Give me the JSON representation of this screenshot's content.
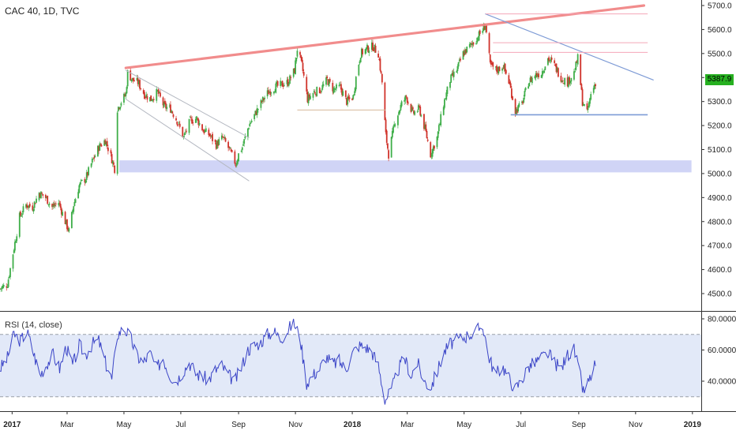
{
  "header": {
    "title": "CAC 40, 1D, TVC"
  },
  "rsi": {
    "title": "RSI (14, close)"
  },
  "last_price_label": "5387.9",
  "colors": {
    "bull": "#3fae49",
    "bear": "#d0332b",
    "trend_main": "#f08080",
    "trend_blue": "#7e9bd6",
    "zone": "#c8ccf5",
    "rsi_line": "#3b45c7",
    "rsi_band": "#dfe7f7",
    "price_tag": "#26b020",
    "horizontal_pink": "#f4a6b8",
    "horizontal_tan": "#d6b89a"
  },
  "chart_data": [
    {
      "type": "candlestick",
      "title": "CAC 40, 1D, TVC",
      "x_tick_labels": [
        "2017",
        "Mar",
        "May",
        "Jul",
        "Sep",
        "Nov",
        "2018",
        "Mar",
        "May",
        "Jul",
        "Sep",
        "Nov",
        "2019"
      ],
      "y_tick_labels": [
        "4500.0",
        "4600.0",
        "4700.0",
        "4800.0",
        "4900.0",
        "5000.0",
        "5100.0",
        "5200.0",
        "5300.0",
        "5400.0",
        "5500.0",
        "5600.0",
        "5700.0"
      ],
      "ylim": [
        4470,
        5740
      ],
      "last_price": 5387.9,
      "close_path": [
        [
          "2016-12-19",
          4520
        ],
        [
          "2016-12-27",
          4540
        ],
        [
          "2017-01-03",
          4690
        ],
        [
          "2017-01-09",
          4820
        ],
        [
          "2017-01-16",
          4870
        ],
        [
          "2017-01-23",
          4860
        ],
        [
          "2017-01-30",
          4920
        ],
        [
          "2017-02-06",
          4900
        ],
        [
          "2017-02-13",
          4860
        ],
        [
          "2017-02-20",
          4880
        ],
        [
          "2017-02-27",
          4800
        ],
        [
          "2017-03-03",
          4760
        ],
        [
          "2017-03-08",
          4870
        ],
        [
          "2017-03-14",
          4950
        ],
        [
          "2017-03-21",
          4980
        ],
        [
          "2017-03-28",
          5050
        ],
        [
          "2017-04-04",
          5110
        ],
        [
          "2017-04-11",
          5140
        ],
        [
          "2017-04-18",
          5060
        ],
        [
          "2017-04-21",
          5020
        ],
        [
          "2017-04-24",
          5270
        ],
        [
          "2017-04-28",
          5300
        ],
        [
          "2017-05-03",
          5330
        ],
        [
          "2017-05-05",
          5420
        ],
        [
          "2017-05-10",
          5390
        ],
        [
          "2017-05-16",
          5380
        ],
        [
          "2017-05-23",
          5330
        ],
        [
          "2017-05-30",
          5310
        ],
        [
          "2017-06-06",
          5340
        ],
        [
          "2017-06-13",
          5280
        ],
        [
          "2017-06-20",
          5270
        ],
        [
          "2017-06-27",
          5220
        ],
        [
          "2017-07-04",
          5150
        ],
        [
          "2017-07-11",
          5220
        ],
        [
          "2017-07-18",
          5230
        ],
        [
          "2017-07-25",
          5180
        ],
        [
          "2017-08-01",
          5160
        ],
        [
          "2017-08-08",
          5120
        ],
        [
          "2017-08-15",
          5150
        ],
        [
          "2017-08-22",
          5100
        ],
        [
          "2017-08-29",
          5040
        ],
        [
          "2017-09-01",
          5080
        ],
        [
          "2017-09-05",
          5110
        ],
        [
          "2017-09-12",
          5200
        ],
        [
          "2017-09-19",
          5250
        ],
        [
          "2017-09-26",
          5300
        ],
        [
          "2017-10-03",
          5340
        ],
        [
          "2017-10-10",
          5360
        ],
        [
          "2017-10-17",
          5370
        ],
        [
          "2017-10-24",
          5380
        ],
        [
          "2017-10-31",
          5430
        ],
        [
          "2017-11-03",
          5520
        ],
        [
          "2017-11-08",
          5450
        ],
        [
          "2017-11-14",
          5310
        ],
        [
          "2017-11-21",
          5340
        ],
        [
          "2017-11-28",
          5350
        ],
        [
          "2017-12-05",
          5390
        ],
        [
          "2017-12-12",
          5350
        ],
        [
          "2017-12-19",
          5360
        ],
        [
          "2017-12-26",
          5300
        ],
        [
          "2018-01-02",
          5320
        ],
        [
          "2018-01-05",
          5400
        ],
        [
          "2018-01-10",
          5500
        ],
        [
          "2018-01-17",
          5520
        ],
        [
          "2018-01-23",
          5530
        ],
        [
          "2018-01-29",
          5500
        ],
        [
          "2018-02-02",
          5380
        ],
        [
          "2018-02-06",
          5160
        ],
        [
          "2018-02-09",
          5080
        ],
        [
          "2018-02-16",
          5220
        ],
        [
          "2018-02-23",
          5290
        ],
        [
          "2018-02-28",
          5320
        ],
        [
          "2018-03-07",
          5250
        ],
        [
          "2018-03-14",
          5270
        ],
        [
          "2018-03-21",
          5170
        ],
        [
          "2018-03-26",
          5080
        ],
        [
          "2018-04-02",
          5150
        ],
        [
          "2018-04-09",
          5290
        ],
        [
          "2018-04-16",
          5390
        ],
        [
          "2018-04-23",
          5430
        ],
        [
          "2018-04-30",
          5500
        ],
        [
          "2018-05-07",
          5530
        ],
        [
          "2018-05-14",
          5560
        ],
        [
          "2018-05-21",
          5600
        ],
        [
          "2018-05-24",
          5620
        ],
        [
          "2018-05-29",
          5450
        ],
        [
          "2018-06-05",
          5430
        ],
        [
          "2018-06-12",
          5450
        ],
        [
          "2018-06-19",
          5370
        ],
        [
          "2018-06-25",
          5260
        ],
        [
          "2018-07-02",
          5290
        ],
        [
          "2018-07-09",
          5380
        ],
        [
          "2018-07-16",
          5410
        ],
        [
          "2018-07-23",
          5420
        ],
        [
          "2018-07-30",
          5480
        ],
        [
          "2018-08-06",
          5450
        ],
        [
          "2018-08-13",
          5400
        ],
        [
          "2018-08-20",
          5380
        ],
        [
          "2018-08-27",
          5420
        ],
        [
          "2018-08-31",
          5480
        ],
        [
          "2018-09-05",
          5300
        ],
        [
          "2018-09-10",
          5250
        ],
        [
          "2018-09-14",
          5330
        ],
        [
          "2018-09-19",
          5380
        ]
      ],
      "annotations": {
        "main_trendline": [
          [
            "2017-05-03",
            5440
          ],
          [
            "2018-11-10",
            5700
          ]
        ],
        "descending_channel_upper": [
          [
            "2017-05-03",
            5430
          ],
          [
            "2017-09-12",
            5150
          ]
        ],
        "descending_channel_lower": [
          [
            "2017-05-03",
            5310
          ],
          [
            "2017-09-12",
            4970
          ]
        ],
        "descending_trendline_2018": [
          [
            "2018-05-24",
            5665
          ],
          [
            "2018-11-20",
            5390
          ]
        ],
        "support_zone": {
          "from": "2017-04-26",
          "to": "2018-12-31",
          "low": 5005,
          "high": 5055
        },
        "support_line_2018": {
          "from": "2018-06-20",
          "to": "2018-11-14",
          "y": 5245
        },
        "resistance_pink_1": {
          "from": "2018-05-24",
          "to": "2018-11-14",
          "y": 5665
        },
        "resistance_pink_2": {
          "from": "2018-06-01",
          "to": "2018-11-14",
          "y": 5545
        },
        "resistance_pink_3": {
          "from": "2018-06-01",
          "to": "2018-11-14",
          "y": 5505
        },
        "horizontal_tan": {
          "from": "2017-11-03",
          "to": "2018-02-06",
          "y": 5265
        }
      }
    },
    {
      "type": "line",
      "title": "RSI (14, close)",
      "y_tick_labels": [
        "40.0000",
        "60.0000",
        "80.0000"
      ],
      "ylim": [
        24,
        82
      ],
      "bands": [
        30,
        70
      ],
      "points": [
        [
          "2016-12-19",
          48
        ],
        [
          "2016-12-27",
          55
        ],
        [
          "2017-01-03",
          70
        ],
        [
          "2017-01-10",
          66
        ],
        [
          "2017-01-17",
          72
        ],
        [
          "2017-01-24",
          58
        ],
        [
          "2017-01-31",
          44
        ],
        [
          "2017-02-07",
          51
        ],
        [
          "2017-02-14",
          57
        ],
        [
          "2017-02-21",
          48
        ],
        [
          "2017-02-28",
          62
        ],
        [
          "2017-03-07",
          50
        ],
        [
          "2017-03-14",
          63
        ],
        [
          "2017-03-21",
          57
        ],
        [
          "2017-03-28",
          64
        ],
        [
          "2017-04-04",
          66
        ],
        [
          "2017-04-11",
          52
        ],
        [
          "2017-04-18",
          41
        ],
        [
          "2017-04-24",
          70
        ],
        [
          "2017-05-01",
          74
        ],
        [
          "2017-05-08",
          68
        ],
        [
          "2017-05-15",
          56
        ],
        [
          "2017-05-22",
          52
        ],
        [
          "2017-05-29",
          58
        ],
        [
          "2017-06-05",
          48
        ],
        [
          "2017-06-12",
          55
        ],
        [
          "2017-06-19",
          44
        ],
        [
          "2017-06-26",
          40
        ],
        [
          "2017-07-03",
          46
        ],
        [
          "2017-07-10",
          52
        ],
        [
          "2017-07-17",
          45
        ],
        [
          "2017-07-24",
          43
        ],
        [
          "2017-07-31",
          41
        ],
        [
          "2017-08-07",
          47
        ],
        [
          "2017-08-14",
          50
        ],
        [
          "2017-08-21",
          44
        ],
        [
          "2017-08-28",
          40
        ],
        [
          "2017-09-04",
          49
        ],
        [
          "2017-09-11",
          60
        ],
        [
          "2017-09-18",
          63
        ],
        [
          "2017-09-25",
          65
        ],
        [
          "2017-10-02",
          70
        ],
        [
          "2017-10-09",
          72
        ],
        [
          "2017-10-16",
          67
        ],
        [
          "2017-10-23",
          72
        ],
        [
          "2017-10-30",
          78
        ],
        [
          "2017-11-06",
          68
        ],
        [
          "2017-11-13",
          39
        ],
        [
          "2017-11-20",
          44
        ],
        [
          "2017-11-27",
          48
        ],
        [
          "2017-12-04",
          56
        ],
        [
          "2017-12-11",
          51
        ],
        [
          "2017-12-18",
          53
        ],
        [
          "2017-12-25",
          47
        ],
        [
          "2018-01-01",
          58
        ],
        [
          "2018-01-08",
          63
        ],
        [
          "2018-01-15",
          62
        ],
        [
          "2018-01-22",
          59
        ],
        [
          "2018-01-29",
          50
        ],
        [
          "2018-02-05",
          28
        ],
        [
          "2018-02-12",
          34
        ],
        [
          "2018-02-19",
          47
        ],
        [
          "2018-02-26",
          55
        ],
        [
          "2018-03-05",
          44
        ],
        [
          "2018-03-12",
          52
        ],
        [
          "2018-03-19",
          40
        ],
        [
          "2018-03-26",
          36
        ],
        [
          "2018-04-02",
          46
        ],
        [
          "2018-04-09",
          58
        ],
        [
          "2018-04-16",
          64
        ],
        [
          "2018-04-23",
          66
        ],
        [
          "2018-04-30",
          68
        ],
        [
          "2018-05-07",
          70
        ],
        [
          "2018-05-14",
          72
        ],
        [
          "2018-05-21",
          76
        ],
        [
          "2018-05-28",
          55
        ],
        [
          "2018-06-04",
          44
        ],
        [
          "2018-06-11",
          50
        ],
        [
          "2018-06-18",
          42
        ],
        [
          "2018-06-25",
          35
        ],
        [
          "2018-07-02",
          41
        ],
        [
          "2018-07-09",
          49
        ],
        [
          "2018-07-16",
          52
        ],
        [
          "2018-07-23",
          55
        ],
        [
          "2018-07-30",
          58
        ],
        [
          "2018-08-06",
          52
        ],
        [
          "2018-08-13",
          48
        ],
        [
          "2018-08-20",
          57
        ],
        [
          "2018-08-27",
          60
        ],
        [
          "2018-09-03",
          42
        ],
        [
          "2018-09-06",
          33
        ],
        [
          "2018-09-12",
          40
        ],
        [
          "2018-09-19",
          51
        ]
      ]
    }
  ]
}
